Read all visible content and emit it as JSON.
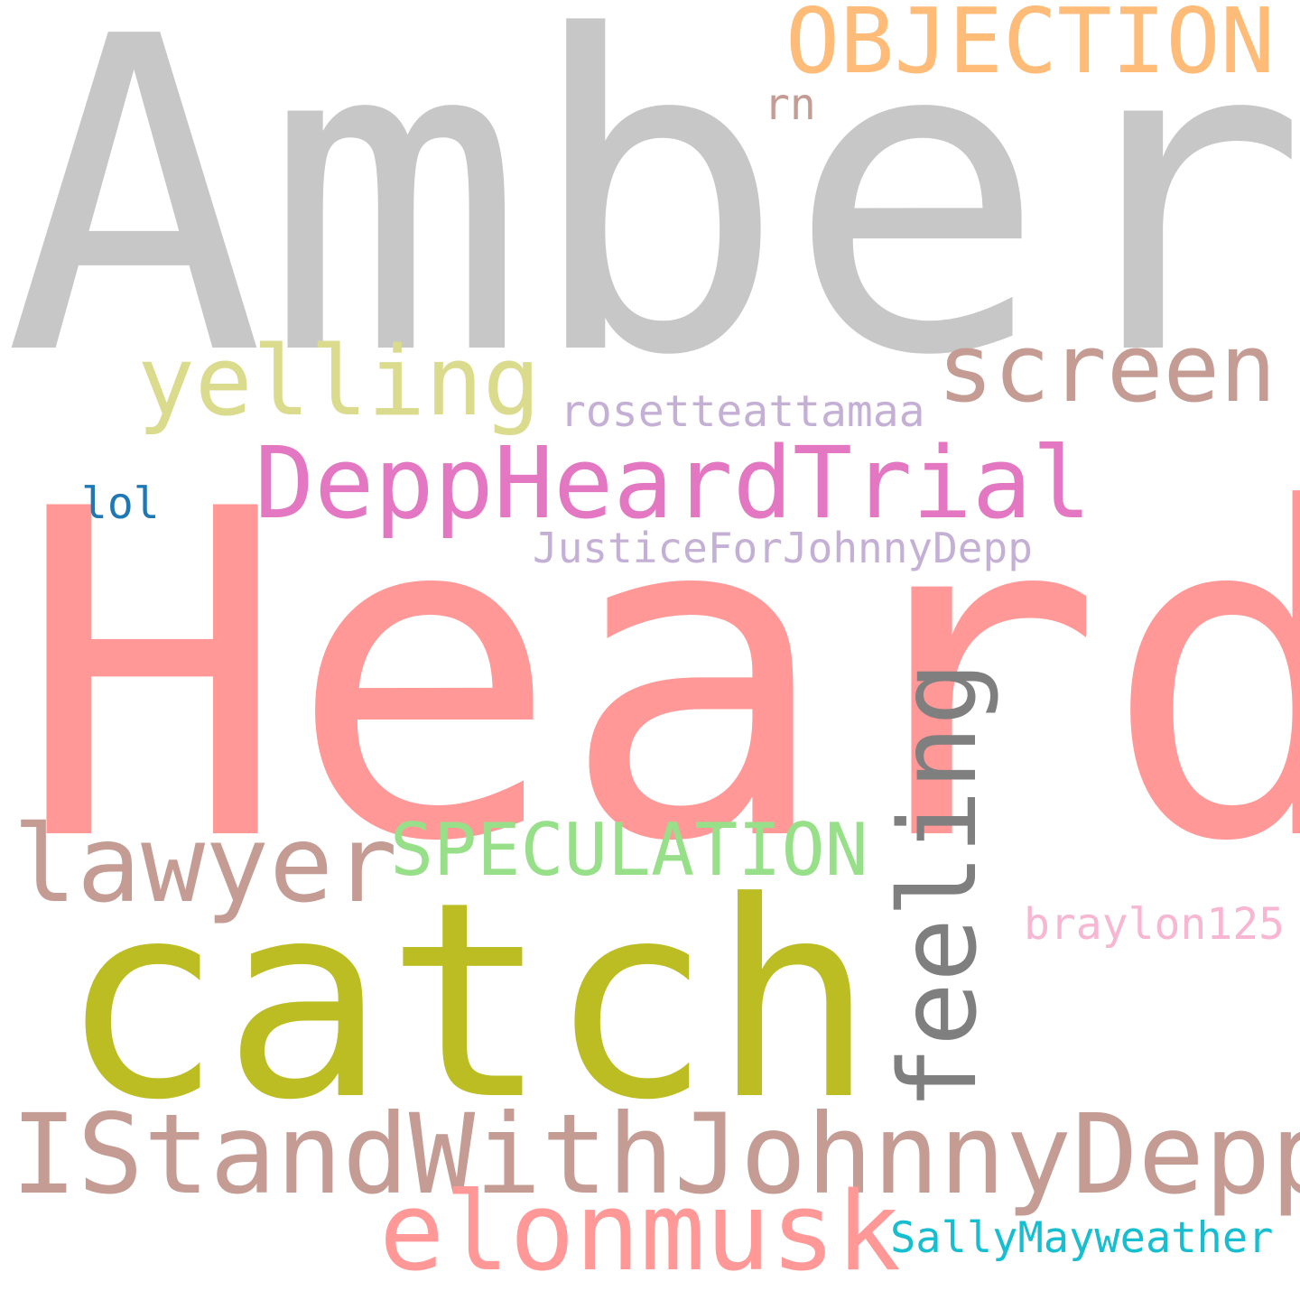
{
  "words": [
    {
      "text": "Amber",
      "color": "#c7c7c7"
    },
    {
      "text": "Heard",
      "color": "#ff9896"
    },
    {
      "text": "catch",
      "color": "#bcbd22"
    },
    {
      "text": "IStandWithJohnnyDepp",
      "color": "#c49c94"
    },
    {
      "text": "elonmusk",
      "color": "#ff9896"
    },
    {
      "text": "feeling",
      "color": "#7f7f7f"
    },
    {
      "text": "OBJECTION",
      "color": "#ffbb78"
    },
    {
      "text": "screen",
      "color": "#c49c94"
    },
    {
      "text": "yelling",
      "color": "#dbdb8d"
    },
    {
      "text": "DeppHeardTrial",
      "color": "#e377c2"
    },
    {
      "text": "lawyer",
      "color": "#c49c94"
    },
    {
      "text": "SPECULATION",
      "color": "#98df8a"
    },
    {
      "text": "rn",
      "color": "#c49c94"
    },
    {
      "text": "rosetteattamaa",
      "color": "#c5b0d5"
    },
    {
      "text": "lol",
      "color": "#1f77b4"
    },
    {
      "text": "JusticeForJohnnyDepp",
      "color": "#c5b0d5"
    },
    {
      "text": "braylon125",
      "color": "#f7b6d2"
    },
    {
      "text": "SallyMayweather",
      "color": "#17becf"
    }
  ]
}
